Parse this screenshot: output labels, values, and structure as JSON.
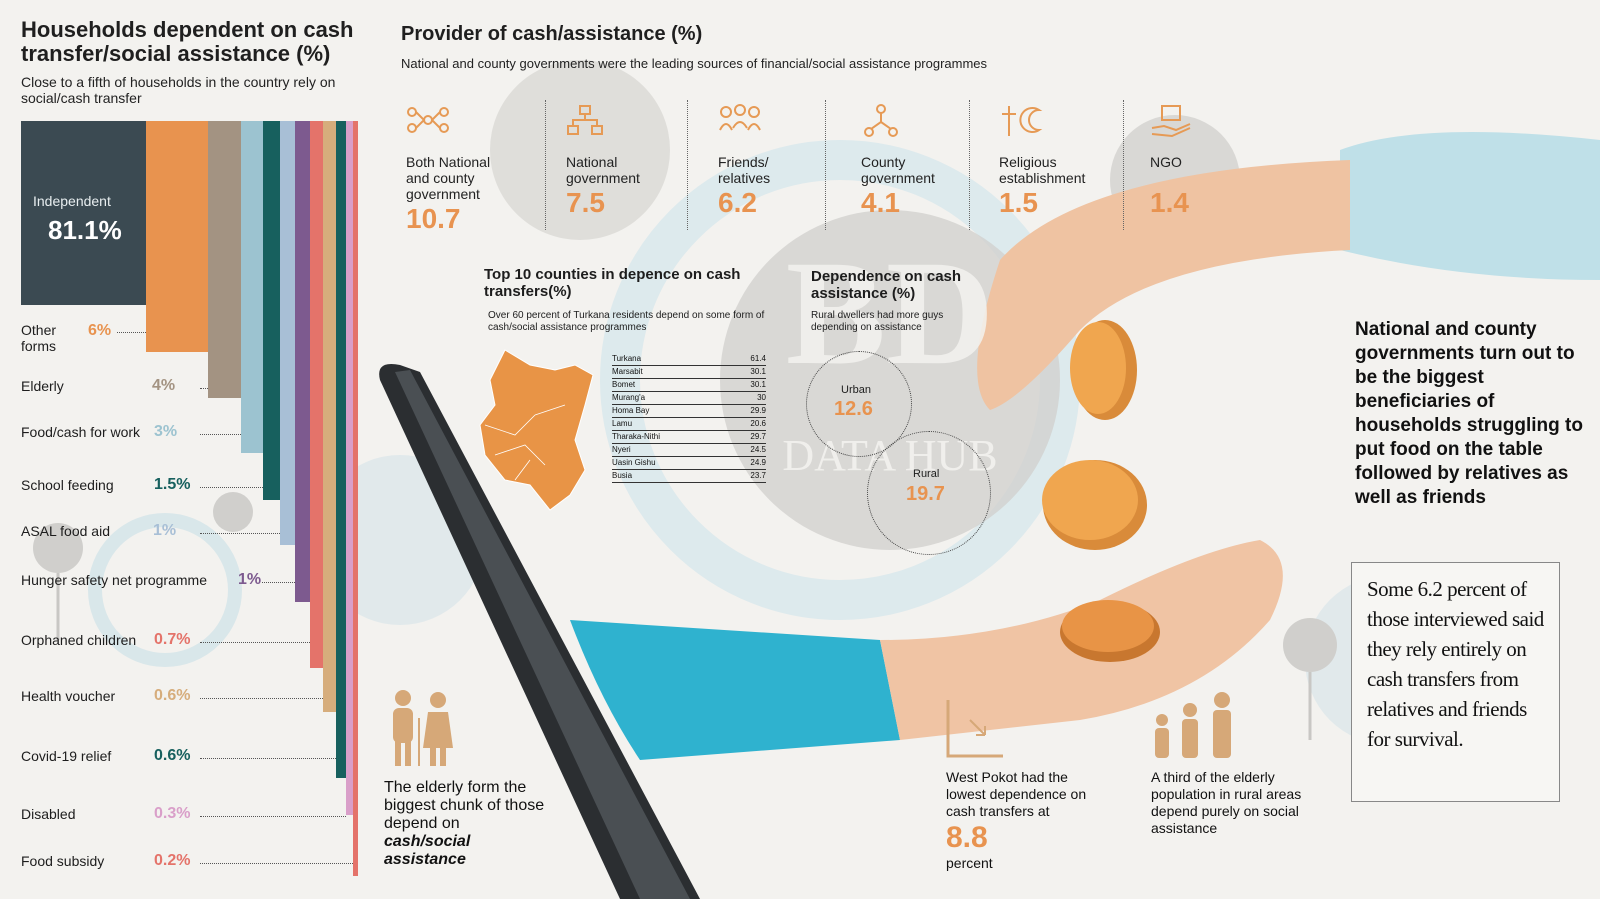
{
  "left": {
    "title": "Households dependent on cash transfer/social assistance (%)",
    "subtitle": "Close to a fifth of households in the country rely on social/cash transfer",
    "main": {
      "label": "Independent",
      "value": "81.1%"
    },
    "items": [
      {
        "label": "Other forms",
        "value": "6%",
        "color": "#e8934f"
      },
      {
        "label": "Elderly",
        "value": "4%",
        "color": "#a39382"
      },
      {
        "label": "Food/cash for work",
        "value": "3%",
        "color": "#9cc3d0"
      },
      {
        "label": "School feeding",
        "value": "1.5%",
        "color": "#17605e"
      },
      {
        "label": "ASAL food aid",
        "value": "1%",
        "color": "#a8bfd6"
      },
      {
        "label": "Hunger safety net programme",
        "value": "1%",
        "color": "#7d5a8f"
      },
      {
        "label": "Orphaned children",
        "value": "0.7%",
        "color": "#e4736a"
      },
      {
        "label": "Health voucher",
        "value": "0.6%",
        "color": "#d6ad7c"
      },
      {
        "label": "Covid-19 relief",
        "value": "0.6%",
        "color": "#17605e"
      },
      {
        "label": "Disabled",
        "value": "0.3%",
        "color": "#d99fc9"
      },
      {
        "label": "Food subsidy",
        "value": "0.2%",
        "color": "#e4736a"
      }
    ]
  },
  "provider": {
    "title": "Provider of cash/assistance (%)",
    "subtitle": "National and county governments were the leading sources of financial/social assistance programmes",
    "items": [
      {
        "label": "Both National and county government",
        "value": "10.7",
        "icon": "network-icon"
      },
      {
        "label": "National government",
        "value": "7.5",
        "icon": "hierarchy-icon"
      },
      {
        "label": "Friends/ relatives",
        "value": "6.2",
        "icon": "people-group-icon"
      },
      {
        "label": "County government",
        "value": "4.1",
        "icon": "nodes-icon"
      },
      {
        "label": "Religious establishment",
        "value": "1.5",
        "icon": "cross-crescent-icon"
      },
      {
        "label": "NGO",
        "value": "1.4",
        "icon": "hand-box-icon"
      }
    ]
  },
  "counties": {
    "title": "Top 10 counties in depence on cash transfers(%)",
    "subtitle": "Over 60 percent of Turkana residents depend on some form of cash/social assistance programmes",
    "rows": [
      {
        "name": "Turkana",
        "value": "61.4"
      },
      {
        "name": "Marsabit",
        "value": "30.1"
      },
      {
        "name": "Bomet",
        "value": "30.1"
      },
      {
        "name": "Murang'a",
        "value": "30"
      },
      {
        "name": "Homa Bay",
        "value": "29.9"
      },
      {
        "name": "Lamu",
        "value": "20.6"
      },
      {
        "name": "Tharaka-Nithi",
        "value": "29.7"
      },
      {
        "name": "Nyeri",
        "value": "24.5"
      },
      {
        "name": "Uasin Gishu",
        "value": "24.9"
      },
      {
        "name": "Busia",
        "value": "23.7"
      }
    ]
  },
  "dependence": {
    "title": "Dependence on cash assistance (%)",
    "subtitle": "Rural dwellers had more guys depending on assistance",
    "urban": {
      "label": "Urban",
      "value": "12.6"
    },
    "rural": {
      "label": "Rural",
      "value": "19.7"
    }
  },
  "watermark": {
    "top": "BD",
    "bottom": "DATA HUB"
  },
  "right_headline": "National and county governments turn out to be the biggest beneficiaries of households struggling to put food on the table followed by relatives as well as friends",
  "quote": "Some 6.2 percent of those interviewed said they rely entirely on cash transfers from relatives and friends for survival.",
  "elderly_note": {
    "pre": "The elderly form the biggest chunk of those depend on ",
    "em": "cash/social assistance"
  },
  "west_pokot": {
    "text": "West Pokot had the lowest dependence on cash transfers at",
    "value": "8.8",
    "unit": "percent"
  },
  "elderly_third": "A third of the elderly population in rural areas depend purely on social assistance",
  "colors": {
    "accent": "#e8934f",
    "dark_teal": "#17605e",
    "slate": "#3b4a52"
  }
}
